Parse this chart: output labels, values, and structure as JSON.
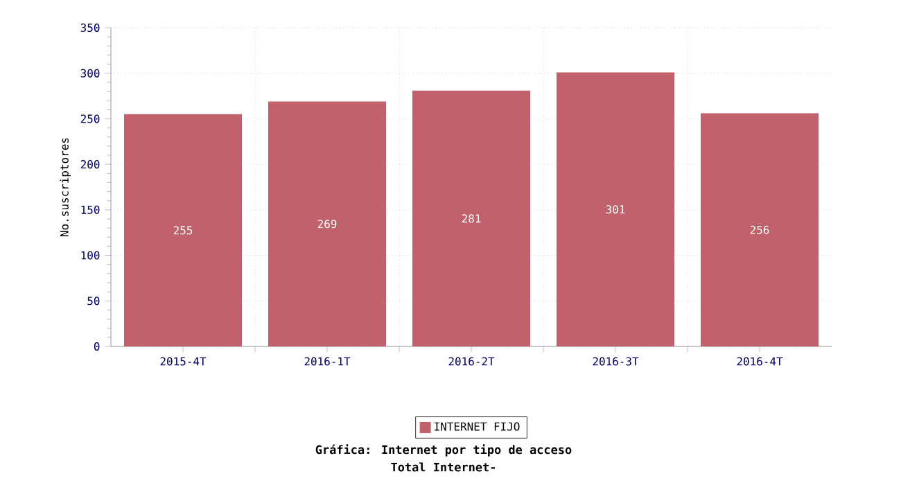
{
  "chart_data": {
    "type": "bar",
    "title": "Gráfica: Internet por tipo de acceso",
    "subtitle": "Total Internet-",
    "ylabel": "No.suscriptores",
    "categories": [
      "2015-4T",
      "2016-1T",
      "2016-2T",
      "2016-3T",
      "2016-4T"
    ],
    "series": [
      {
        "name": "INTERNET FIJO",
        "color": "#c0616b",
        "values": [
          255,
          269,
          281,
          301,
          256
        ]
      }
    ],
    "ylim": [
      0,
      350
    ],
    "yticks": [
      0,
      50,
      100,
      150,
      200,
      250,
      300,
      350
    ],
    "grid": true,
    "legend": "bottom",
    "data_labels": true
  }
}
